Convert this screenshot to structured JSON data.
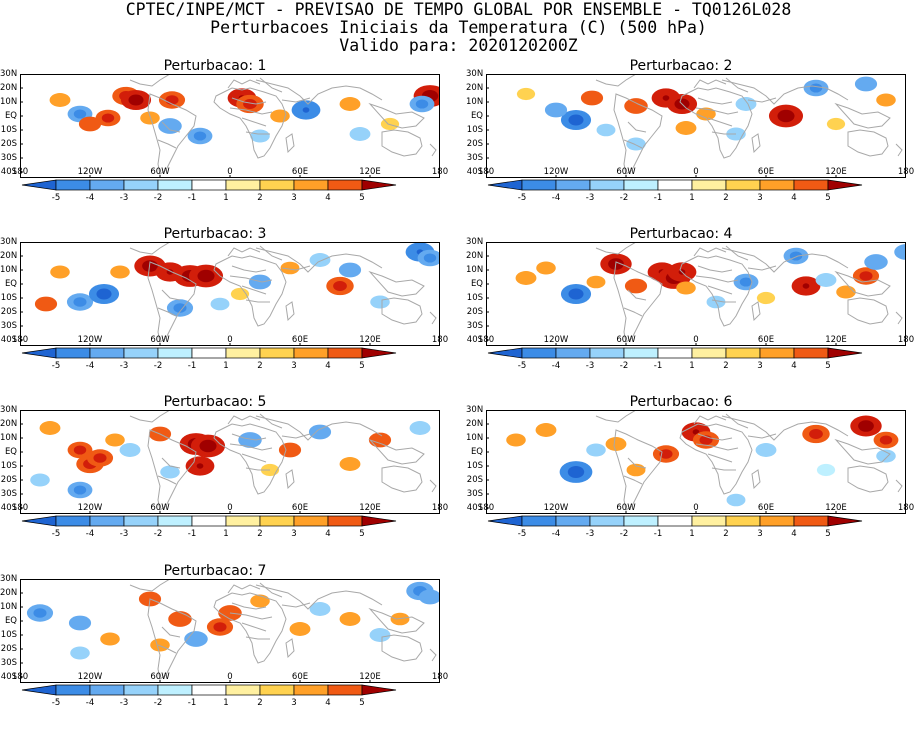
{
  "header": {
    "line1": "CPTEC/INPE/MCT - PREVISAO DE TEMPO GLOBAL POR ENSEMBLE - TQ0126L028",
    "line2": "Perturbacoes Iniciais da Temperatura (C) (500 hPa)",
    "line3": "Valido para: 2020120200Z"
  },
  "lat_labels": [
    "30N",
    "20N",
    "10N",
    "EQ",
    "10S",
    "20S",
    "30S",
    "40S"
  ],
  "lon_labels": [
    "180",
    "120W",
    "60W",
    "0",
    "60E",
    "120E",
    "180"
  ],
  "colorbar": {
    "labels": [
      "-5",
      "-4",
      "-3",
      "-2",
      "-1",
      "1",
      "2",
      "3",
      "4",
      "5"
    ],
    "colors": [
      "#1e64d2",
      "#3c8ce6",
      "#64aaf0",
      "#96d2fa",
      "#bef0ff",
      "#ffffff",
      "#fff0a0",
      "#ffd250",
      "#ffa028",
      "#f05a14",
      "#d21e0a",
      "#a00000"
    ]
  },
  "panels": [
    {
      "title": "Perturbacao: 1",
      "blobs": [
        [
          106,
          22,
          2.8
        ],
        [
          116,
          26,
          3.2
        ],
        [
          152,
          26,
          2.6
        ],
        [
          222,
          24,
          3.0
        ],
        [
          230,
          30,
          2.8
        ],
        [
          410,
          22,
          3.6
        ],
        [
          88,
          44,
          2.4
        ],
        [
          60,
          40,
          -2.4
        ],
        [
          286,
          36,
          -3.0
        ],
        [
          402,
          30,
          -2.4
        ],
        [
          150,
          52,
          -2.2
        ],
        [
          180,
          62,
          -2.4
        ],
        [
          70,
          50,
          2.0
        ],
        [
          130,
          44,
          1.6
        ],
        [
          330,
          30,
          1.8
        ],
        [
          40,
          26,
          1.8
        ],
        [
          260,
          42,
          1.6
        ],
        [
          340,
          60,
          -1.8
        ],
        [
          240,
          62,
          -1.6
        ],
        [
          370,
          50,
          1.4
        ]
      ]
    },
    {
      "title": "Perturbacao: 2",
      "blobs": [
        [
          180,
          24,
          3.0
        ],
        [
          196,
          30,
          3.2
        ],
        [
          300,
          42,
          3.8
        ],
        [
          106,
          24,
          2.0
        ],
        [
          150,
          32,
          2.2
        ],
        [
          90,
          46,
          -3.2
        ],
        [
          70,
          36,
          -2.0
        ],
        [
          330,
          14,
          -2.4
        ],
        [
          380,
          10,
          -2.0
        ],
        [
          260,
          30,
          -1.8
        ],
        [
          200,
          54,
          1.8
        ],
        [
          150,
          70,
          -1.6
        ],
        [
          250,
          60,
          -1.6
        ],
        [
          400,
          26,
          1.6
        ],
        [
          40,
          20,
          1.4
        ],
        [
          220,
          40,
          1.6
        ],
        [
          120,
          56,
          -1.5
        ],
        [
          350,
          50,
          1.4
        ]
      ]
    },
    {
      "title": "Perturbacao: 3",
      "blobs": [
        [
          130,
          24,
          3.4
        ],
        [
          150,
          30,
          3.0
        ],
        [
          170,
          34,
          3.6
        ],
        [
          186,
          34,
          3.8
        ],
        [
          60,
          60,
          -2.6
        ],
        [
          84,
          52,
          -3.2
        ],
        [
          160,
          66,
          -2.6
        ],
        [
          400,
          10,
          -3.0
        ],
        [
          410,
          16,
          -2.4
        ],
        [
          320,
          44,
          2.8
        ],
        [
          330,
          28,
          -2.0
        ],
        [
          240,
          40,
          -2.0
        ],
        [
          26,
          62,
          2.0
        ],
        [
          300,
          18,
          -1.8
        ],
        [
          100,
          30,
          1.6
        ],
        [
          40,
          30,
          1.6
        ],
        [
          360,
          60,
          -1.6
        ],
        [
          220,
          52,
          1.4
        ],
        [
          270,
          26,
          1.5
        ],
        [
          200,
          62,
          -1.5
        ]
      ]
    },
    {
      "title": "Perturbacao: 4",
      "blobs": [
        [
          130,
          22,
          3.4
        ],
        [
          176,
          30,
          3.0
        ],
        [
          188,
          36,
          3.6
        ],
        [
          196,
          30,
          3.0
        ],
        [
          260,
          40,
          -2.4
        ],
        [
          90,
          52,
          -3.2
        ],
        [
          320,
          44,
          3.0
        ],
        [
          340,
          38,
          -1.8
        ],
        [
          380,
          34,
          2.6
        ],
        [
          390,
          20,
          -2.2
        ],
        [
          310,
          14,
          -2.4
        ],
        [
          40,
          36,
          1.8
        ],
        [
          150,
          44,
          2.0
        ],
        [
          60,
          26,
          1.6
        ],
        [
          420,
          10,
          -2.2
        ],
        [
          230,
          60,
          -1.5
        ],
        [
          360,
          50,
          1.6
        ],
        [
          110,
          40,
          1.5
        ],
        [
          280,
          56,
          1.4
        ],
        [
          200,
          46,
          1.6
        ]
      ]
    },
    {
      "title": "Perturbacao: 5",
      "blobs": [
        [
          60,
          40,
          2.4
        ],
        [
          70,
          54,
          2.8
        ],
        [
          80,
          48,
          2.6
        ],
        [
          176,
          34,
          3.6
        ],
        [
          188,
          36,
          3.8
        ],
        [
          180,
          56,
          3.0
        ],
        [
          140,
          24,
          2.0
        ],
        [
          30,
          18,
          1.8
        ],
        [
          110,
          40,
          -1.8
        ],
        [
          230,
          30,
          -2.2
        ],
        [
          300,
          22,
          -2.0
        ],
        [
          270,
          40,
          2.0
        ],
        [
          60,
          80,
          -2.4
        ],
        [
          360,
          30,
          2.0
        ],
        [
          400,
          18,
          -1.8
        ],
        [
          20,
          70,
          -1.6
        ],
        [
          330,
          54,
          1.8
        ],
        [
          150,
          62,
          -1.6
        ],
        [
          250,
          60,
          1.4
        ],
        [
          95,
          30,
          1.6
        ]
      ]
    },
    {
      "title": "Perturbacao: 6",
      "blobs": [
        [
          90,
          62,
          -3.6
        ],
        [
          210,
          22,
          3.0
        ],
        [
          220,
          30,
          2.6
        ],
        [
          330,
          24,
          2.8
        ],
        [
          380,
          16,
          3.4
        ],
        [
          400,
          30,
          2.4
        ],
        [
          60,
          20,
          1.8
        ],
        [
          130,
          34,
          1.8
        ],
        [
          110,
          40,
          -1.6
        ],
        [
          180,
          44,
          2.6
        ],
        [
          280,
          40,
          -1.8
        ],
        [
          30,
          30,
          1.6
        ],
        [
          250,
          90,
          -1.5
        ],
        [
          400,
          46,
          -1.6
        ],
        [
          150,
          60,
          1.5
        ],
        [
          340,
          60,
          -1.4
        ]
      ]
    },
    {
      "title": "Perturbacao: 7",
      "blobs": [
        [
          20,
          34,
          -2.6
        ],
        [
          60,
          44,
          -2.0
        ],
        [
          130,
          20,
          2.0
        ],
        [
          160,
          40,
          2.2
        ],
        [
          200,
          48,
          2.6
        ],
        [
          210,
          34,
          2.2
        ],
        [
          176,
          60,
          -2.2
        ],
        [
          280,
          50,
          1.8
        ],
        [
          300,
          30,
          -1.8
        ],
        [
          400,
          12,
          -2.8
        ],
        [
          410,
          18,
          -2.0
        ],
        [
          360,
          56,
          -1.8
        ],
        [
          90,
          60,
          1.6
        ],
        [
          140,
          66,
          1.6
        ],
        [
          240,
          22,
          1.6
        ],
        [
          330,
          40,
          1.8
        ],
        [
          60,
          74,
          -1.6
        ],
        [
          380,
          40,
          1.5
        ]
      ]
    }
  ]
}
